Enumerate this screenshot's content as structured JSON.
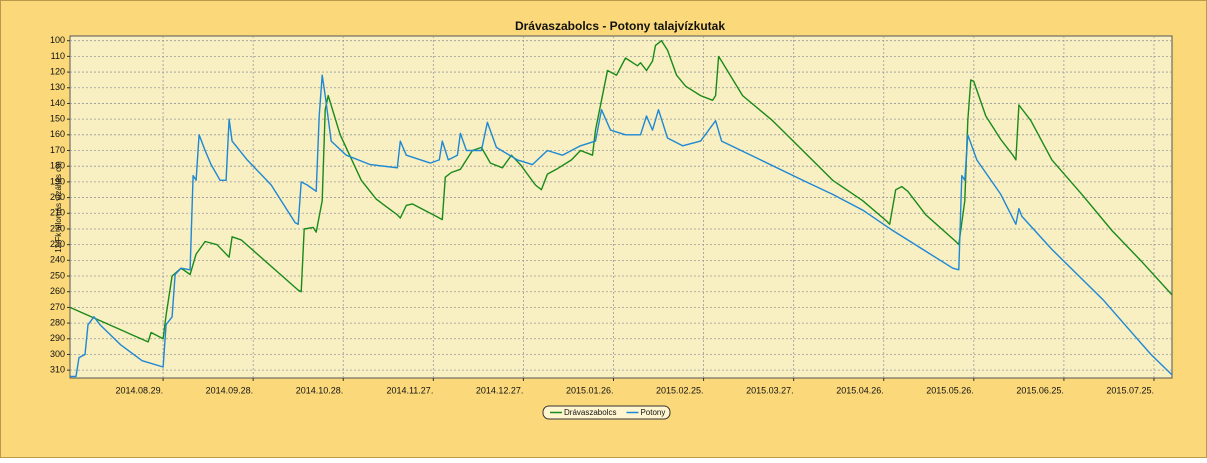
{
  "chart_data": {
    "type": "line",
    "title": "Drávaszabolcs - Potony talajvízkutak",
    "y_label": "12/Fk állomás vízállás cm",
    "y_inverted": true,
    "grid": true,
    "legend": "bottom",
    "xlim": [
      "2014-07-29",
      "2015-07-31"
    ],
    "xticks": [
      {
        "value": "2014-08-29",
        "label": "2014.08.29."
      },
      {
        "value": "2014-09-28",
        "label": "2014.09.28."
      },
      {
        "value": "2014-10-28",
        "label": "2014.10.28."
      },
      {
        "value": "2014-11-27",
        "label": "2014.11.27."
      },
      {
        "value": "2014-12-27",
        "label": "2014.12.27."
      },
      {
        "value": "2015-01-26",
        "label": "2015.01.26."
      },
      {
        "value": "2015-02-25",
        "label": "2015.02.25."
      },
      {
        "value": "2015-03-27",
        "label": "2015.03.27."
      },
      {
        "value": "2015-04-26",
        "label": "2015.04.26."
      },
      {
        "value": "2015-05-26",
        "label": "2015.05.26."
      },
      {
        "value": "2015-06-25",
        "label": "2015.06.25."
      },
      {
        "value": "2015-07-25",
        "label": "2015.07.25."
      }
    ],
    "ylim": [
      97,
      315
    ],
    "yticks": [
      100,
      110,
      120,
      130,
      140,
      150,
      160,
      170,
      180,
      190,
      200,
      210,
      220,
      230,
      240,
      250,
      260,
      270,
      280,
      290,
      300,
      310
    ],
    "series": [
      {
        "name": "Drávaszabolcs",
        "color": "#1a8a1a",
        "x": [
          "2014-07-29",
          "2014-08-24",
          "2014-08-25",
          "2014-08-29",
          "2014-08-30",
          "2014-09-01",
          "2014-09-04",
          "2014-09-07",
          "2014-09-09",
          "2014-09-12",
          "2014-09-16",
          "2014-09-20",
          "2014-09-21",
          "2014-09-24",
          "2014-10-13",
          "2014-10-14",
          "2014-10-15",
          "2014-10-18",
          "2014-10-19",
          "2014-10-21",
          "2014-10-22",
          "2014-10-23",
          "2014-10-27",
          "2014-11-03",
          "2014-11-08",
          "2014-11-15",
          "2014-11-16",
          "2014-11-18",
          "2014-11-20",
          "2014-11-28",
          "2014-11-30",
          "2014-12-01",
          "2014-12-03",
          "2014-12-06",
          "2014-12-10",
          "2014-12-13",
          "2014-12-16",
          "2014-12-20",
          "2014-12-23",
          "2014-12-26",
          "2014-12-31",
          "2015-01-02",
          "2015-01-04",
          "2015-01-07",
          "2015-01-12",
          "2015-01-15",
          "2015-01-19",
          "2015-01-20",
          "2015-01-22",
          "2015-01-24",
          "2015-01-27",
          "2015-01-30",
          "2015-02-03",
          "2015-02-04",
          "2015-02-06",
          "2015-02-08",
          "2015-02-09",
          "2015-02-11",
          "2015-02-13",
          "2015-02-16",
          "2015-02-19",
          "2015-02-24",
          "2015-02-28",
          "2015-03-01",
          "2015-03-02",
          "2015-03-03",
          "2015-03-10",
          "2015-03-20",
          "2015-03-30",
          "2015-04-09",
          "2015-04-19",
          "2015-04-27",
          "2015-04-28",
          "2015-04-30",
          "2015-05-02",
          "2015-05-04",
          "2015-05-10",
          "2015-05-20",
          "2015-05-21",
          "2015-05-23",
          "2015-05-24",
          "2015-05-25",
          "2015-05-26",
          "2015-05-30",
          "2015-06-04",
          "2015-06-08",
          "2015-06-09",
          "2015-06-10",
          "2015-06-14",
          "2015-06-21",
          "2015-07-01",
          "2015-07-11",
          "2015-07-21",
          "2015-07-31"
        ],
        "values": [
          270,
          292,
          286,
          290,
          275,
          250,
          245,
          249,
          236,
          228,
          230,
          238,
          225,
          227,
          259,
          260,
          220,
          219,
          222,
          202,
          144,
          135,
          160,
          189,
          201,
          211,
          213,
          205,
          204,
          212,
          214,
          187,
          184,
          182,
          170,
          168,
          178,
          181,
          173,
          179,
          192,
          195,
          185,
          182,
          176,
          170,
          173,
          157,
          138,
          119,
          122,
          111,
          116,
          114,
          119,
          113,
          103,
          100,
          106,
          122,
          129,
          135,
          138,
          135,
          110,
          113,
          135,
          151,
          170,
          189,
          202,
          215,
          217,
          195,
          193,
          196,
          211,
          228,
          230,
          202,
          151,
          125,
          126,
          148,
          163,
          173,
          176,
          141,
          151,
          176,
          198,
          221,
          241,
          262
        ]
      },
      {
        "name": "Potony",
        "color": "#1e88d4",
        "x": [
          "2014-07-29",
          "2014-07-31",
          "2014-08-01",
          "2014-08-03",
          "2014-08-04",
          "2014-08-06",
          "2014-08-08",
          "2014-08-15",
          "2014-08-22",
          "2014-08-29",
          "2014-08-30",
          "2014-09-01",
          "2014-09-02",
          "2014-09-04",
          "2014-09-07",
          "2014-09-08",
          "2014-09-09",
          "2014-09-10",
          "2014-09-12",
          "2014-09-14",
          "2014-09-17",
          "2014-09-19",
          "2014-09-20",
          "2014-09-21",
          "2014-09-26",
          "2014-10-04",
          "2014-10-12",
          "2014-10-13",
          "2014-10-14",
          "2014-10-16",
          "2014-10-19",
          "2014-10-20",
          "2014-10-21",
          "2014-10-22",
          "2014-10-24",
          "2014-10-29",
          "2014-11-06",
          "2014-11-15",
          "2014-11-16",
          "2014-11-18",
          "2014-11-26",
          "2014-11-29",
          "2014-11-30",
          "2014-12-02",
          "2014-12-05",
          "2014-12-06",
          "2014-12-08",
          "2014-12-13",
          "2014-12-15",
          "2014-12-18",
          "2014-12-25",
          "2014-12-30",
          "2015-01-04",
          "2015-01-09",
          "2015-01-15",
          "2015-01-20",
          "2015-01-22",
          "2015-01-25",
          "2015-01-30",
          "2015-02-04",
          "2015-02-06",
          "2015-02-08",
          "2015-02-10",
          "2015-02-13",
          "2015-02-18",
          "2015-02-24",
          "2015-03-01",
          "2015-03-03",
          "2015-03-16",
          "2015-03-30",
          "2015-04-09",
          "2015-04-19",
          "2015-04-29",
          "2015-05-09",
          "2015-05-19",
          "2015-05-21",
          "2015-05-22",
          "2015-05-23",
          "2015-05-24",
          "2015-05-27",
          "2015-06-04",
          "2015-06-09",
          "2015-06-10",
          "2015-06-11",
          "2015-06-21",
          "2015-07-08",
          "2015-07-24",
          "2015-07-31"
        ],
        "values": [
          314,
          314,
          302,
          300,
          281,
          276,
          281,
          294,
          304,
          308,
          281,
          276,
          249,
          245,
          246,
          186,
          189,
          160,
          170,
          179,
          189,
          189,
          150,
          164,
          176,
          192,
          216,
          217,
          190,
          192,
          196,
          148,
          122,
          135,
          164,
          173,
          179,
          181,
          164,
          173,
          178,
          176,
          164,
          176,
          173,
          159,
          170,
          170,
          152,
          168,
          176,
          179,
          170,
          173,
          167,
          164,
          144,
          157,
          160,
          160,
          148,
          157,
          144,
          162,
          167,
          164,
          151,
          164,
          176,
          189,
          198,
          208,
          221,
          233,
          245,
          246,
          186,
          189,
          160,
          176,
          198,
          217,
          207,
          212,
          233,
          265,
          300,
          313
        ]
      }
    ]
  }
}
